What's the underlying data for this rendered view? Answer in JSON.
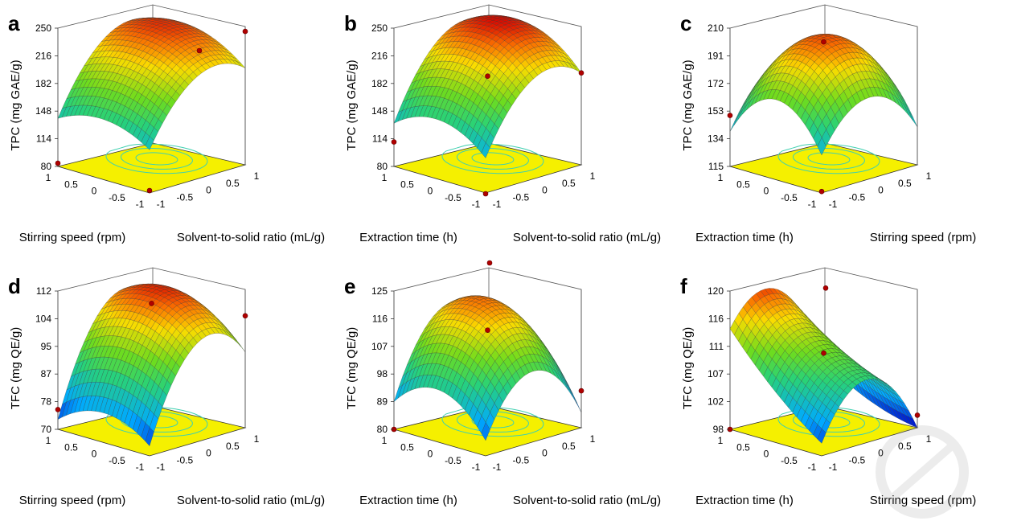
{
  "chart_data": [
    {
      "type": "surface",
      "panel": "a",
      "zlabel": "TPC (mg GAE/g)",
      "xlabel": "Stirring speed (rpm)",
      "ylabel": "Solvent-to-solid ratio (mL/g)",
      "z_ticks": [
        "250",
        "216",
        "182",
        "148",
        "114",
        "80"
      ],
      "zlim": [
        80,
        250
      ],
      "x_ticks": [
        "1",
        "0.5",
        "0",
        "-0.5",
        "-1"
      ],
      "y_ticks": [
        "-1",
        "-0.5",
        "0",
        "0.5",
        "1"
      ],
      "surface_model": {
        "b0": 232,
        "bx": 8,
        "by": 38,
        "bxx": -18,
        "byy": -40,
        "bxy": 5
      },
      "design_points": [
        {
          "x": -1,
          "y": 1,
          "z": 244
        },
        {
          "x": 0,
          "y": 1,
          "z": 204
        },
        {
          "x": 1,
          "y": -1,
          "z": 84
        },
        {
          "x": -1,
          "y": -1,
          "z": 83
        }
      ]
    },
    {
      "type": "surface",
      "panel": "b",
      "zlabel": "TPC (mg GAE/g)",
      "xlabel": "Extraction time (h)",
      "ylabel": "Solvent-to-solid ratio (mL/g)",
      "z_ticks": [
        "250",
        "216",
        "182",
        "148",
        "114",
        "80"
      ],
      "zlim": [
        80,
        250
      ],
      "x_ticks": [
        "1",
        "0.5",
        "0",
        "-0.5",
        "-1"
      ],
      "y_ticks": [
        "-1",
        "-0.5",
        "0",
        "0.5",
        "1"
      ],
      "surface_model": {
        "b0": 238,
        "bx": 10,
        "by": 40,
        "bxx": -25,
        "byy": -45,
        "bxy": 5
      },
      "design_points": [
        {
          "x": 0,
          "y": 0,
          "z": 190
        },
        {
          "x": 1,
          "y": -1,
          "z": 110
        },
        {
          "x": -1,
          "y": 1,
          "z": 193
        },
        {
          "x": -1,
          "y": -1,
          "z": 79
        }
      ]
    },
    {
      "type": "surface",
      "panel": "c",
      "zlabel": "TPC (mg GAE/g)",
      "xlabel": "Extraction time (h)",
      "ylabel": "Stirring speed (rpm)",
      "z_ticks": [
        "210",
        "191",
        "172",
        "153",
        "134",
        "115"
      ],
      "zlim": [
        115,
        210
      ],
      "x_ticks": [
        "1",
        "0.5",
        "0",
        "-0.5",
        "-1"
      ],
      "y_ticks": [
        "-1",
        "-0.5",
        "0",
        "0.5",
        "1"
      ],
      "surface_model": {
        "b0": 203,
        "bx": 2,
        "by": 3,
        "bxx": -30,
        "byy": -30,
        "bxy": 3
      },
      "design_points": [
        {
          "x": 0,
          "y": 0,
          "z": 200
        },
        {
          "x": 1,
          "y": -1,
          "z": 150
        },
        {
          "x": -1,
          "y": -1,
          "z": 116
        }
      ]
    },
    {
      "type": "surface",
      "panel": "d",
      "zlabel": "TFC (mg QE/g)",
      "xlabel": "Stirring speed (rpm)",
      "ylabel": "Solvent-to-solid ratio (mL/g)",
      "z_ticks": [
        "112",
        "104",
        "95",
        "87",
        "78",
        "70"
      ],
      "zlim": [
        70,
        112
      ],
      "x_ticks": [
        "1",
        "0.5",
        "0",
        "-0.5",
        "-1"
      ],
      "y_ticks": [
        "-1",
        "-0.5",
        "0",
        "0.5",
        "1"
      ],
      "surface_model": {
        "b0": 108,
        "bx": 2,
        "by": 12,
        "bxx": -6,
        "byy": -17,
        "bxy": 2
      },
      "design_points": [
        {
          "x": 0,
          "y": 0,
          "z": 108
        },
        {
          "x": -1,
          "y": 1,
          "z": 104
        },
        {
          "x": 1,
          "y": -1,
          "z": 76
        }
      ]
    },
    {
      "type": "surface",
      "panel": "e",
      "zlabel": "TFC (mg QE/g)",
      "xlabel": "Extraction time (h)",
      "ylabel": "Solvent-to-solid ratio (mL/g)",
      "z_ticks": [
        "125",
        "116",
        "107",
        "98",
        "89",
        "80"
      ],
      "zlim": [
        80,
        125
      ],
      "x_ticks": [
        "1",
        "0.5",
        "0",
        "-0.5",
        "-1"
      ],
      "y_ticks": [
        "-1",
        "-0.5",
        "0",
        "0.5",
        "1"
      ],
      "surface_model": {
        "b0": 119,
        "bx": 6,
        "by": 4,
        "bxx": -10,
        "byy": -18,
        "bxy": 4
      },
      "design_points": [
        {
          "x": 1,
          "y": 1,
          "z": 125
        },
        {
          "x": 0,
          "y": 0,
          "z": 112
        },
        {
          "x": -1,
          "y": 1,
          "z": 92
        },
        {
          "x": 1,
          "y": -1,
          "z": 80
        }
      ]
    },
    {
      "type": "surface",
      "panel": "f",
      "zlabel": "TFC (mg QE/g)",
      "xlabel": "Extraction time (h)",
      "ylabel": "Stirring speed (rpm)",
      "z_ticks": [
        "120",
        "116",
        "111",
        "107",
        "102",
        "98"
      ],
      "zlim": [
        98,
        120
      ],
      "x_ticks": [
        "1",
        "0.5",
        "0",
        "-0.5",
        "-1"
      ],
      "y_ticks": [
        "-1",
        "-0.5",
        "0",
        "0.5",
        "1"
      ],
      "surface_model": {
        "b0": 112,
        "bx": 5,
        "by": -3,
        "bxx": 1,
        "byy": -9,
        "bxy": -2
      },
      "design_points": [
        {
          "x": 1,
          "y": 1,
          "z": 116
        },
        {
          "x": 0,
          "y": 0,
          "z": 110
        },
        {
          "x": -1,
          "y": 1,
          "z": 100
        },
        {
          "x": 1,
          "y": -1,
          "z": 98
        }
      ]
    }
  ]
}
